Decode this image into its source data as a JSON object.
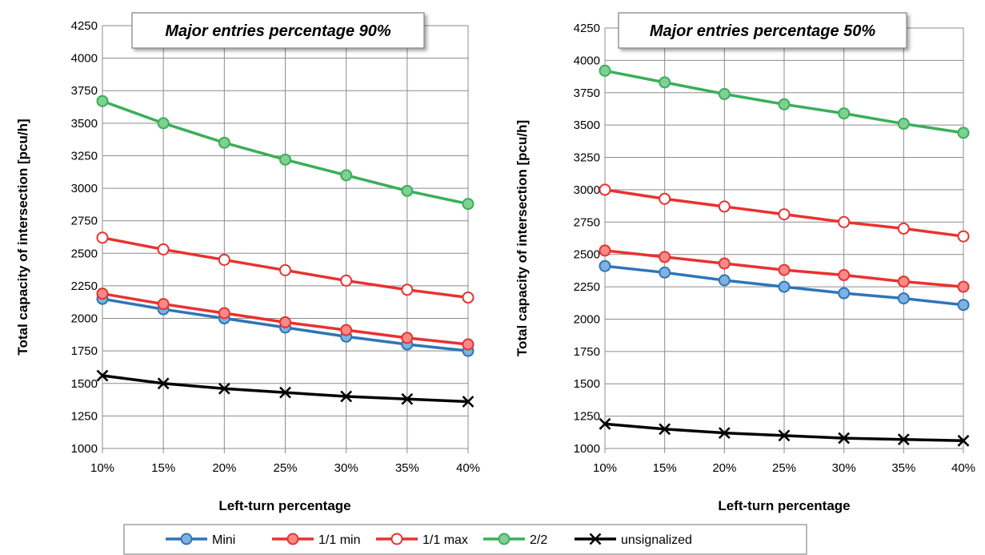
{
  "chart_data": [
    {
      "type": "line",
      "title": "Major entries percentage 90%",
      "xlabel": "Left-turn percentage",
      "ylabel": "Total capacity of intersection [pcu/h]",
      "categories": [
        "10%",
        "15%",
        "20%",
        "25%",
        "30%",
        "35%",
        "40%"
      ],
      "ylim": [
        1000,
        4250
      ],
      "yticks": [
        "1000",
        "1250",
        "1500",
        "1750",
        "2000",
        "2250",
        "2500",
        "2750",
        "3000",
        "3250",
        "3500",
        "3750",
        "4000",
        "4250"
      ],
      "grid": true,
      "series": [
        {
          "name": "Mini",
          "values": [
            2150,
            2070,
            2000,
            1930,
            1860,
            1800,
            1750
          ]
        },
        {
          "name": "1/1 min",
          "values": [
            2190,
            2110,
            2040,
            1970,
            1910,
            1850,
            1800
          ]
        },
        {
          "name": "1/1 max",
          "values": [
            2620,
            2530,
            2450,
            2370,
            2290,
            2220,
            2160
          ]
        },
        {
          "name": "2/2",
          "values": [
            3670,
            3500,
            3350,
            3220,
            3100,
            2980,
            2880
          ]
        },
        {
          "name": "unsignalized",
          "values": [
            1560,
            1500,
            1460,
            1430,
            1400,
            1380,
            1360
          ]
        }
      ]
    },
    {
      "type": "line",
      "title": "Major entries percentage 50%",
      "xlabel": "Left-turn percentage",
      "ylabel": "Total capacity of intersection [pcu/h]",
      "categories": [
        "10%",
        "15%",
        "20%",
        "25%",
        "30%",
        "35%",
        "40%"
      ],
      "ylim": [
        1000,
        4250
      ],
      "yticks": [
        "1000",
        "1250",
        "1500",
        "1750",
        "2000",
        "2250",
        "2500",
        "2750",
        "3000",
        "3250",
        "3500",
        "3750",
        "4000",
        "4250"
      ],
      "grid": true,
      "series": [
        {
          "name": "Mini",
          "values": [
            2410,
            2360,
            2300,
            2250,
            2200,
            2160,
            2110
          ]
        },
        {
          "name": "1/1 min",
          "values": [
            2530,
            2480,
            2430,
            2380,
            2340,
            2290,
            2250
          ]
        },
        {
          "name": "1/1 max",
          "values": [
            3000,
            2930,
            2870,
            2810,
            2750,
            2700,
            2640
          ]
        },
        {
          "name": "2/2",
          "values": [
            3920,
            3830,
            3740,
            3660,
            3590,
            3510,
            3440
          ]
        },
        {
          "name": "unsignalized",
          "values": [
            1190,
            1150,
            1120,
            1100,
            1080,
            1070,
            1060
          ]
        }
      ]
    }
  ],
  "series_styles": [
    {
      "color": "#2e75b6",
      "fill": "#7fb2e0",
      "marker": "filled-circle"
    },
    {
      "color": "#e8322f",
      "fill": "#f58a87",
      "marker": "filled-circle"
    },
    {
      "color": "#e8322f",
      "fill": "#ffffff",
      "marker": "hollow-circle"
    },
    {
      "color": "#3aae5a",
      "fill": "#7fd092",
      "marker": "filled-circle"
    },
    {
      "color": "#000000",
      "fill": "none",
      "marker": "x"
    }
  ],
  "legend": {
    "placement": "bottom",
    "items": [
      "Mini",
      "1/1 min",
      "1/1 max",
      "2/2",
      "unsignalized"
    ]
  }
}
